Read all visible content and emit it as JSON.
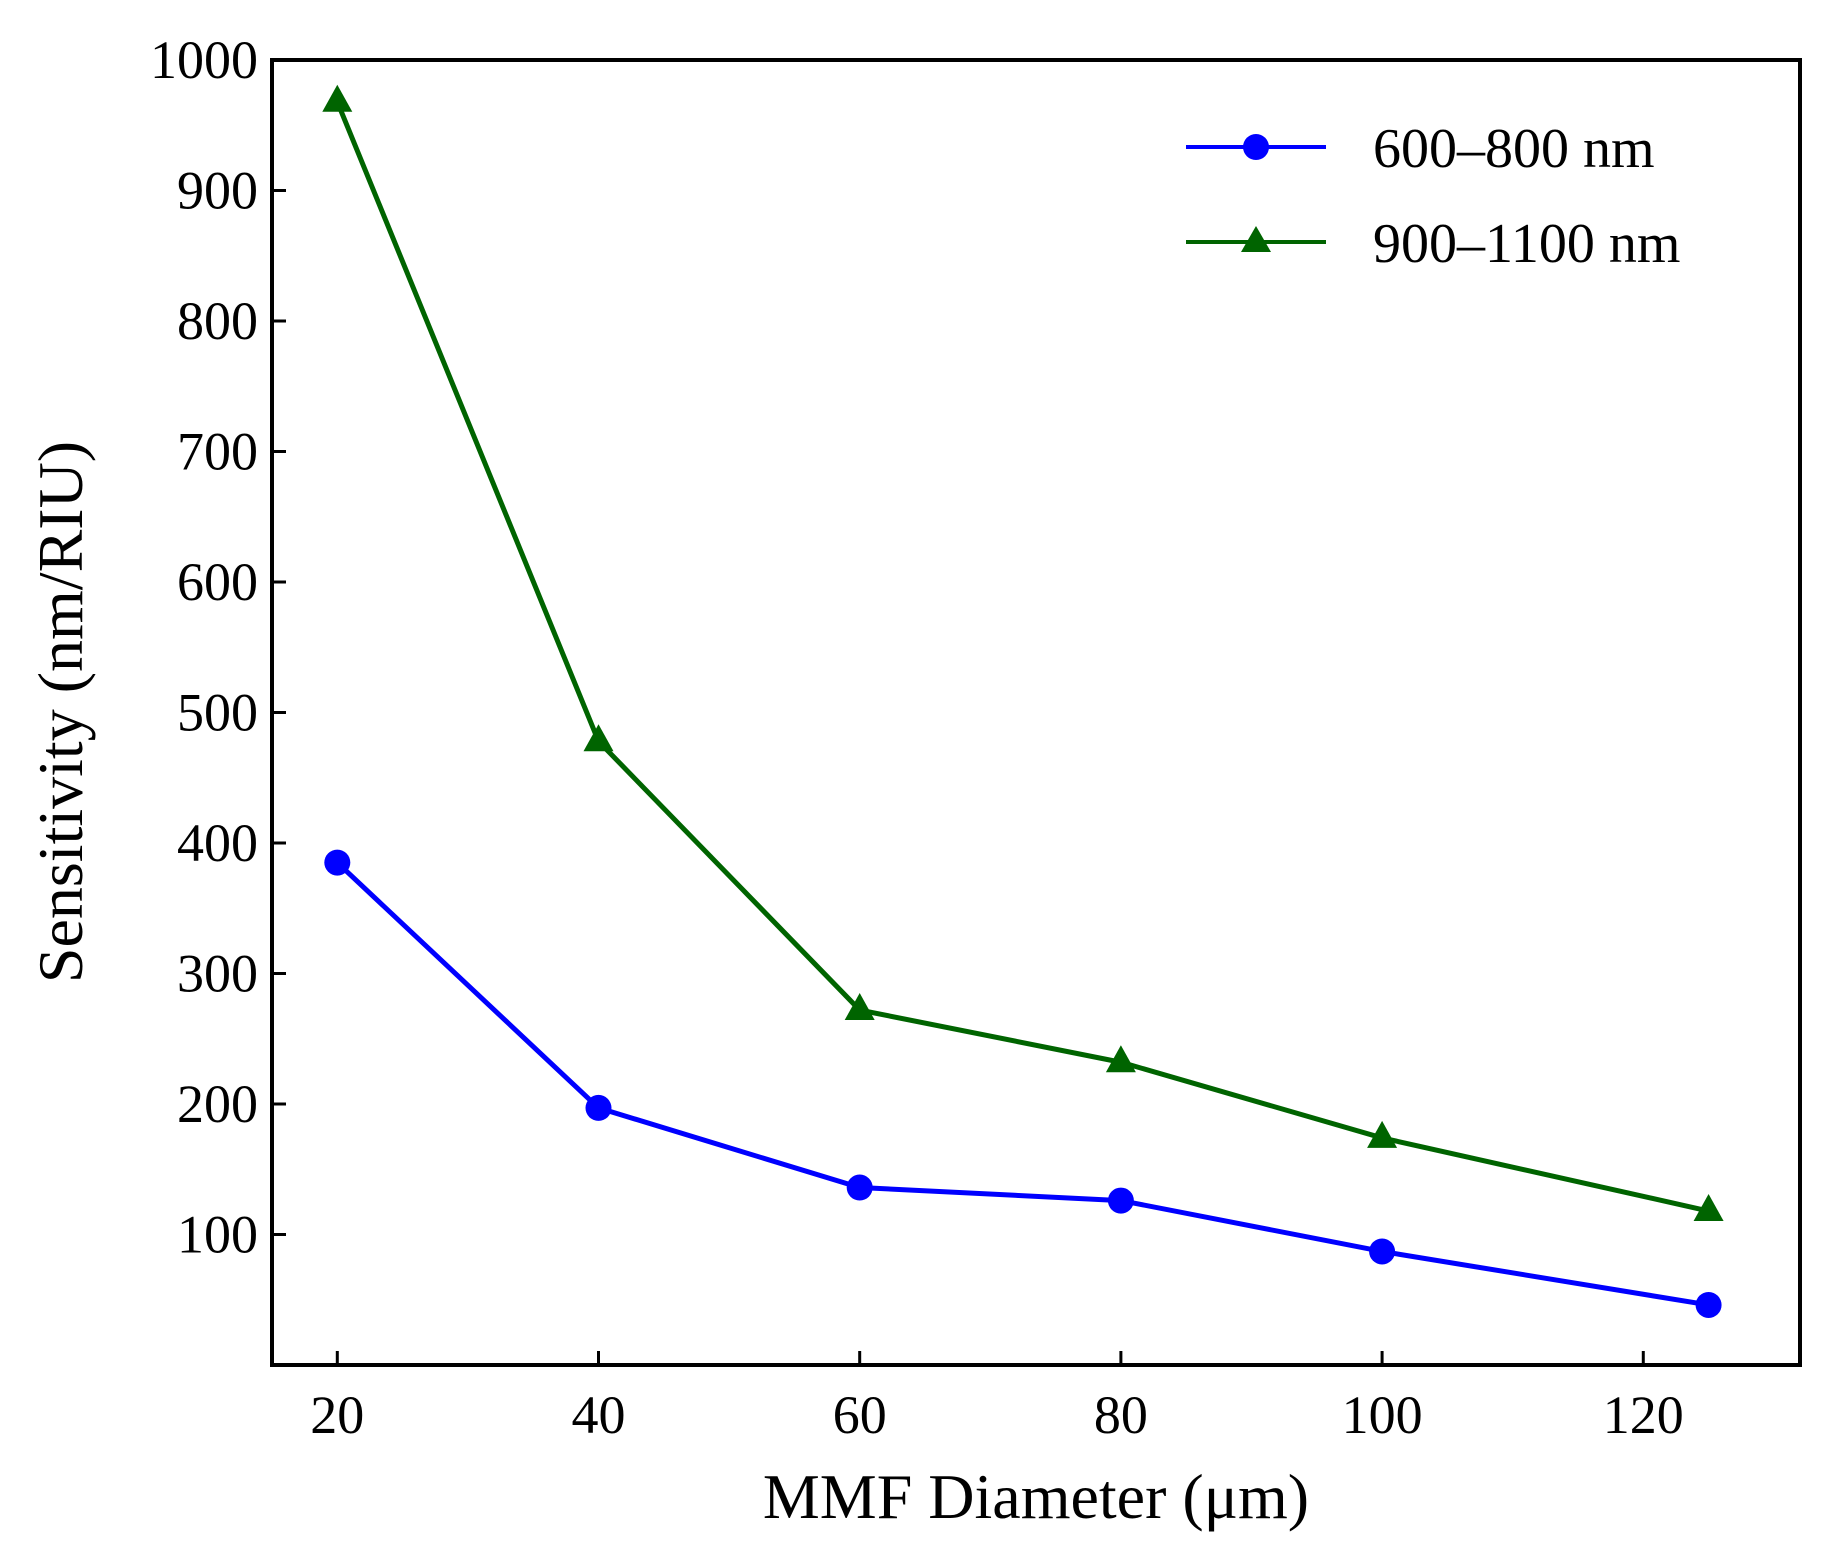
{
  "chart_data": {
    "type": "line",
    "title": "",
    "xlabel": "MMF Diameter (μm)",
    "ylabel": "Sensitivity (nm/RIU)",
    "xlim": [
      15,
      132
    ],
    "ylim": [
      0,
      1000
    ],
    "xticks": [
      20,
      40,
      60,
      80,
      100,
      120
    ],
    "yticks": [
      100,
      200,
      300,
      400,
      500,
      600,
      700,
      800,
      900,
      1000
    ],
    "grid": false,
    "legend_position": "top-right",
    "x": [
      20,
      40,
      60,
      80,
      100,
      125
    ],
    "series": [
      {
        "name": "600–800 nm",
        "color": "#0000ff",
        "marker": "circle",
        "values": [
          385,
          197,
          136,
          126,
          87,
          46
        ]
      },
      {
        "name": "900–1100 nm",
        "color": "#006400",
        "marker": "triangle",
        "values": [
          968,
          478,
          272,
          232,
          174,
          118
        ]
      }
    ]
  }
}
